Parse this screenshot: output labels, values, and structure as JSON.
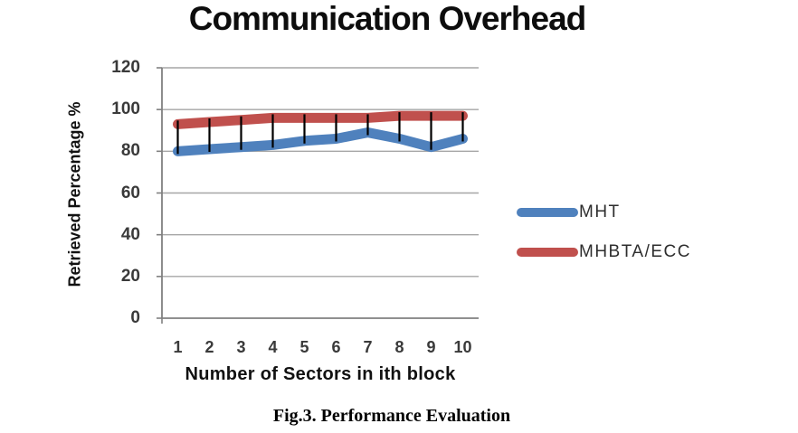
{
  "title": "Communication Overhead",
  "caption": "Fig.3. Performance Evaluation",
  "colors": {
    "grid": "#A6A6A6",
    "axis": "#808080",
    "tick_label": "#3a3a3a",
    "error_bar": "#000000",
    "series_blue": "#4F81BD",
    "series_red": "#C0504D"
  },
  "chart_data": {
    "type": "line",
    "title": "Communication Overhead",
    "xlabel": "Number of Sectors in ith block",
    "ylabel": "Retrieved Percentage %",
    "x": [
      1,
      2,
      3,
      4,
      5,
      6,
      7,
      8,
      9,
      10
    ],
    "series": [
      {
        "name": "MHT",
        "color": "#4F81BD",
        "values": [
          80,
          81,
          82,
          83,
          85,
          86,
          89,
          86,
          82,
          86
        ]
      },
      {
        "name": "MHBTA/ECC",
        "color": "#C0504D",
        "values": [
          93,
          94,
          95,
          96,
          96,
          96,
          96,
          97,
          97,
          97
        ]
      }
    ],
    "ylim": [
      0,
      120
    ],
    "yticks": [
      0,
      20,
      40,
      60,
      80,
      100,
      120
    ],
    "grid": true,
    "error_bars": {
      "between_series": true,
      "color": "#000000"
    },
    "legend_position": "right"
  }
}
